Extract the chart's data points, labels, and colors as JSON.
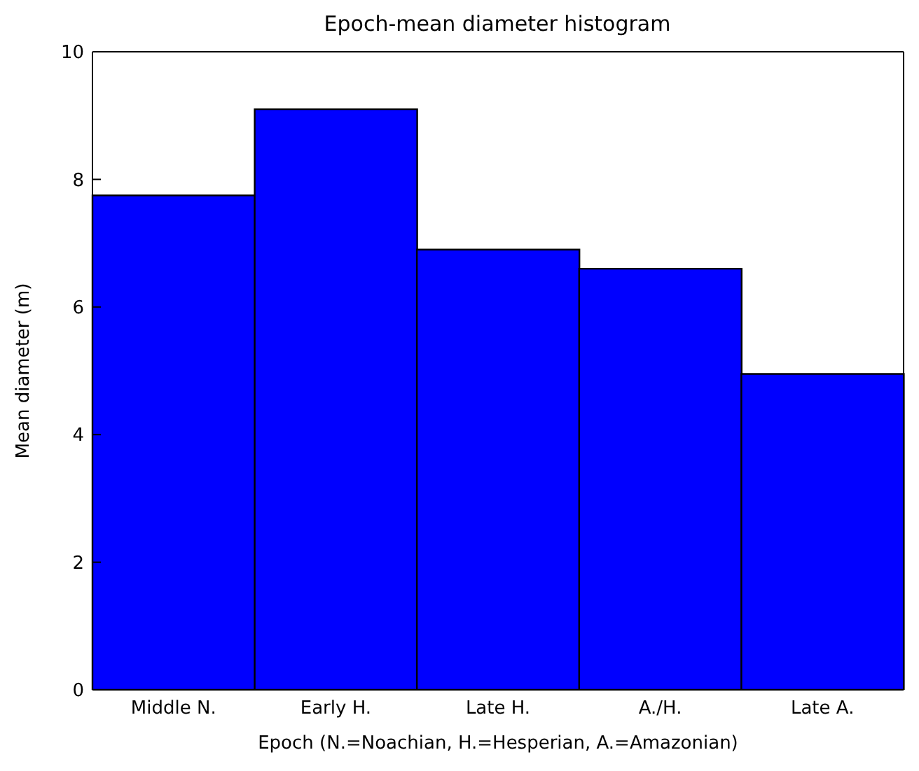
{
  "chart_data": {
    "type": "bar",
    "title": "Epoch-mean diameter histogram",
    "xlabel": "Epoch (N.=Noachian, H.=Hesperian, A.=Amazonian)",
    "ylabel": "Mean diameter (m)",
    "categories": [
      "Middle N.",
      "Early H.",
      "Late H.",
      "A./H.",
      "Late A."
    ],
    "values": [
      7.75,
      9.1,
      6.9,
      6.6,
      4.95
    ],
    "color": "#0000ff",
    "ylim": [
      0,
      10
    ],
    "yticks": [
      0,
      2,
      4,
      6,
      8,
      10
    ],
    "grid": false,
    "legend": false
  }
}
